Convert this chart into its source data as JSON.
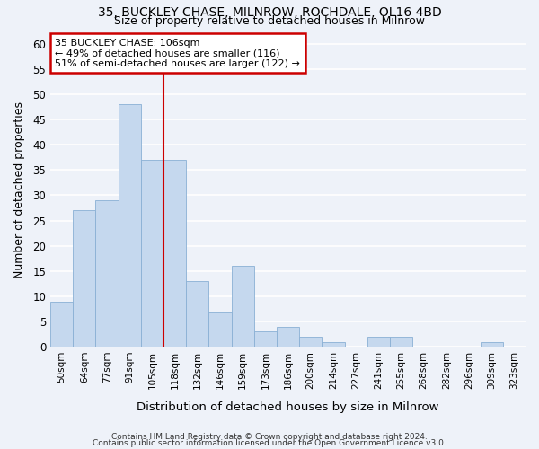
{
  "title1": "35, BUCKLEY CHASE, MILNROW, ROCHDALE, OL16 4BD",
  "title2": "Size of property relative to detached houses in Milnrow",
  "xlabel": "Distribution of detached houses by size in Milnrow",
  "ylabel": "Number of detached properties",
  "categories": [
    "50sqm",
    "64sqm",
    "77sqm",
    "91sqm",
    "105sqm",
    "118sqm",
    "132sqm",
    "146sqm",
    "159sqm",
    "173sqm",
    "186sqm",
    "200sqm",
    "214sqm",
    "227sqm",
    "241sqm",
    "255sqm",
    "268sqm",
    "282sqm",
    "296sqm",
    "309sqm",
    "323sqm"
  ],
  "values": [
    9,
    27,
    29,
    48,
    37,
    37,
    13,
    7,
    16,
    3,
    4,
    2,
    1,
    0,
    2,
    2,
    0,
    0,
    0,
    1,
    0
  ],
  "bar_color": "#c5d8ee",
  "bar_edge_color": "#8ab0d4",
  "annotation_line1": "35 BUCKLEY CHASE: 106sqm",
  "annotation_line2": "← 49% of detached houses are smaller (116)",
  "annotation_line3": "51% of semi-detached houses are larger (122) →",
  "annotation_box_color": "#ffffff",
  "annotation_box_edge_color": "#cc0000",
  "ref_line_color": "#cc0000",
  "ref_line_x": 4.5,
  "ylim": [
    0,
    62
  ],
  "yticks": [
    0,
    5,
    10,
    15,
    20,
    25,
    30,
    35,
    40,
    45,
    50,
    55,
    60
  ],
  "background_color": "#eef2f9",
  "grid_color": "#ffffff",
  "footer1": "Contains HM Land Registry data © Crown copyright and database right 2024.",
  "footer2": "Contains public sector information licensed under the Open Government Licence v3.0."
}
